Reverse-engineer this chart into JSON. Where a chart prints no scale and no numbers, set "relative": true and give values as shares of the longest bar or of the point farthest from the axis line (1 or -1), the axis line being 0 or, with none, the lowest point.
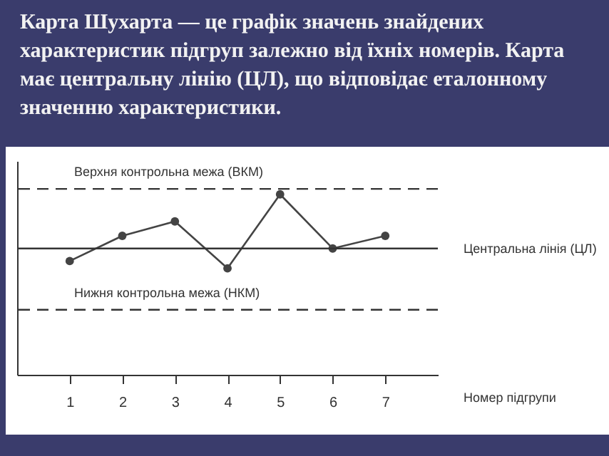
{
  "chart_data": {
    "type": "line",
    "title": "Карта Шухарта — це графік значень знайдених характеристик підгруп залежно від їхніх номерів. Карта має центральну лінію (ЦЛ), що відповідає еталонному значенню характеристики.",
    "xlabel": "Номер підгрупи",
    "categories": [
      "1",
      "2",
      "3",
      "4",
      "5",
      "6",
      "7"
    ],
    "relative": true,
    "series": [
      {
        "color": "#444444",
        "values": [
          0.63,
          0.77,
          0.85,
          0.59,
          1.0,
          0.7,
          0.77
        ]
      }
    ],
    "marker": "circle",
    "line_style": "solid",
    "ref_lines": [
      {
        "axis": "y",
        "value": 1.03,
        "label": "Верхня контрольна межа (ВКМ)",
        "line_style": "dashed",
        "color": "#333333"
      },
      {
        "axis": "y",
        "value": 0.7,
        "label": "Центральна лінія (ЦЛ)",
        "line_style": "solid",
        "color": "#333333"
      },
      {
        "axis": "y",
        "value": 0.36,
        "label": "Нижня контрольна межа (НКМ)",
        "line_style": "dashed",
        "color": "#333333"
      }
    ]
  }
}
